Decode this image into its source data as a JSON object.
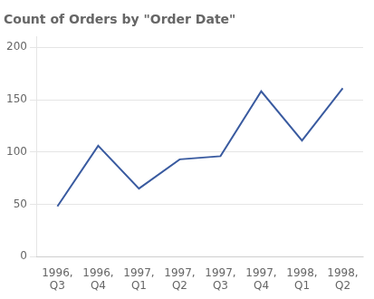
{
  "chart_data": {
    "type": "line",
    "title": "Count of Orders by \"Order Date\"",
    "categories": [
      "1996,\nQ3",
      "1996,\nQ4",
      "1997,\nQ1",
      "1997,\nQ2",
      "1997,\nQ3",
      "1997,\nQ4",
      "1998,\nQ1",
      "1998,\nQ2"
    ],
    "values": [
      48,
      106,
      65,
      93,
      96,
      158,
      111,
      161
    ],
    "color": "#3A5BA0",
    "ylim": [
      0,
      210
    ],
    "yticks": [
      0,
      50,
      100,
      150,
      200
    ],
    "grid": true
  }
}
